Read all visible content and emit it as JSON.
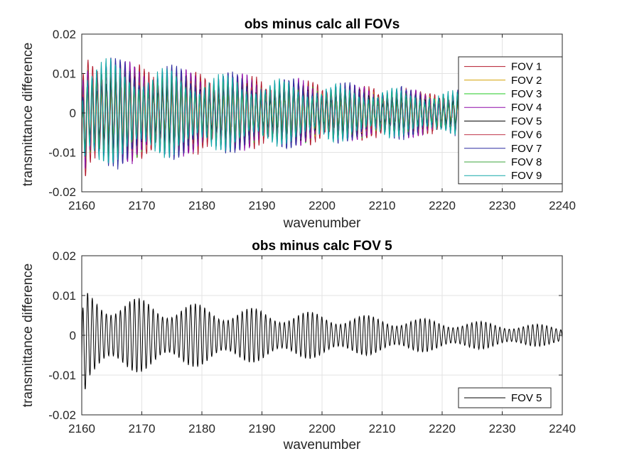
{
  "chart_data": [
    {
      "type": "line",
      "title": "obs minus calc all FOVs",
      "xlabel": "wavenumber",
      "ylabel": "transmittance difference",
      "xlim": [
        2160,
        2240
      ],
      "ylim": [
        -0.02,
        0.02
      ],
      "xticks": [
        2160,
        2170,
        2180,
        2190,
        2200,
        2210,
        2220,
        2230,
        2240
      ],
      "xtick_labels": [
        "2160",
        "2170",
        "2180",
        "2190",
        "2200",
        "2210",
        "2220",
        "2230",
        "2240"
      ],
      "yticks": [
        -0.02,
        -0.01,
        0,
        0.01,
        0.02
      ],
      "ytick_labels": [
        "-0.02",
        "-0.01",
        "0",
        "0.01",
        "0.02"
      ],
      "grid": true,
      "legend_position": "right",
      "series": [
        {
          "name": "FOV 1",
          "color": "#b2182b"
        },
        {
          "name": "FOV 2",
          "color": "#d4a000"
        },
        {
          "name": "FOV 3",
          "color": "#22c922"
        },
        {
          "name": "FOV 4",
          "color": "#8e0ca8"
        },
        {
          "name": "FOV 5",
          "color": "#000000"
        },
        {
          "name": "FOV 6",
          "color": "#c0364a"
        },
        {
          "name": "FOV 7",
          "color": "#2d2da0"
        },
        {
          "name": "FOV 8",
          "color": "#3da53d"
        },
        {
          "name": "FOV 9",
          "color": "#13a8a8"
        }
      ],
      "signal_model": {
        "description": "decaying oscillation",
        "period_wavenumber": 0.78,
        "amplitude_start": 0.014,
        "amplitude_end": 0.003
      }
    },
    {
      "type": "line",
      "title": "obs minus calc FOV 5",
      "xlabel": "wavenumber",
      "ylabel": "transmittance difference",
      "xlim": [
        2160,
        2240
      ],
      "ylim": [
        -0.02,
        0.02
      ],
      "xticks": [
        2160,
        2170,
        2180,
        2190,
        2200,
        2210,
        2220,
        2230,
        2240
      ],
      "xtick_labels": [
        "2160",
        "2170",
        "2180",
        "2190",
        "2200",
        "2210",
        "2220",
        "2230",
        "2240"
      ],
      "yticks": [
        -0.02,
        -0.01,
        0,
        0.01,
        0.02
      ],
      "ytick_labels": [
        "-0.02",
        "-0.01",
        "0",
        "0.01",
        "0.02"
      ],
      "grid": true,
      "legend_position": "bottom-right",
      "series": [
        {
          "name": "FOV 5",
          "color": "#000000"
        }
      ],
      "signal_model": {
        "description": "decaying oscillation",
        "period_wavenumber": 0.78,
        "amplitude_start": 0.012,
        "amplitude_end": 0.0025
      }
    }
  ]
}
